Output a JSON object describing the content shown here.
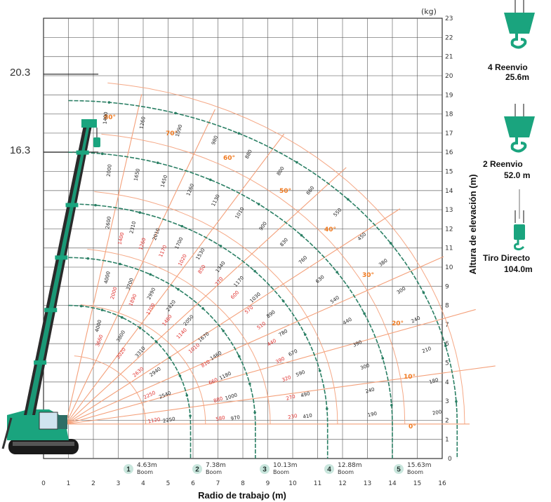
{
  "chart_data": {
    "type": "line",
    "title": "",
    "xlabel": "Radio de trabajo (m)",
    "ylabel": "Altura de elevación (m)",
    "y_unit": "(kg)",
    "xlim": [
      0,
      16
    ],
    "ylim": [
      0,
      23
    ],
    "x_ticks": [
      "0",
      "1",
      "2",
      "3",
      "4",
      "5",
      "6",
      "7",
      "8",
      "9",
      "10",
      "11",
      "12",
      "13",
      "14",
      "15",
      "16"
    ],
    "y_ticks": [
      "0",
      "1",
      "2",
      "3",
      "4",
      "5",
      "6",
      "7",
      "8",
      "9",
      "10",
      "11",
      "12",
      "13",
      "14",
      "15",
      "16",
      "17",
      "18",
      "19",
      "20",
      "21",
      "22",
      "23"
    ],
    "grid": true,
    "left_heights": [
      "20.3",
      "16.3"
    ],
    "boom_curves": [
      {
        "id": "1",
        "length": "4.63m",
        "word": "Boom",
        "radius": 5.9,
        "tip_y": 8.0
      },
      {
        "id": "2",
        "length": "7.38m",
        "word": "Boom",
        "radius": 8.5,
        "tip_y": 10.5
      },
      {
        "id": "3",
        "length": "10.13m",
        "word": "Boom",
        "radius": 11.4,
        "tip_y": 13.3
      },
      {
        "id": "4",
        "length": "12.88m",
        "word": "Boom",
        "radius": 14.0,
        "tip_y": 16.0
      },
      {
        "id": "5",
        "length": "15.63m",
        "word": "Boom",
        "radius": 16.6,
        "tip_y": 18.7
      }
    ],
    "angle_labels": [
      "80°",
      "70°",
      "60°",
      "50°",
      "40°",
      "30°",
      "20°",
      "10°",
      "0°"
    ],
    "loads": {
      "boom1": [
        "4000",
        "3800",
        "3310",
        "2940",
        "2540",
        "2250"
      ],
      "boom1_red": [
        "3660",
        "3020",
        "2630",
        "2250",
        "1120"
      ],
      "boom2": [
        "4000",
        "3700",
        "2990",
        "2420",
        "2050",
        "1670",
        "1460",
        "1180",
        "1000",
        "970"
      ],
      "boom2_red": [
        "2000",
        "1890",
        "1700",
        "1480",
        "1140",
        "1010",
        "810",
        "660",
        "880",
        "580"
      ],
      "boom3": [
        "2600",
        "2310",
        "2010",
        "1700",
        "1530",
        "1340",
        "1170",
        "1030",
        "890",
        "780",
        "670",
        "590",
        "490",
        "410"
      ],
      "boom3_red": [
        "1400",
        "1260",
        "1170",
        "1020",
        "850",
        "770",
        "600",
        "570",
        "510",
        "440",
        "390",
        "320",
        "270",
        "230"
      ],
      "boom4": [
        "2000",
        "1650",
        "1450",
        "1260",
        "1130",
        "1010",
        "900",
        "830",
        "760",
        "630",
        "540",
        "440",
        "390",
        "300",
        "240",
        "190"
      ],
      "boom5": [
        "1400",
        "1260",
        "1090",
        "980",
        "880",
        "800",
        "860",
        "550",
        "450",
        "380",
        "300",
        "240",
        "210",
        "180",
        "200"
      ]
    },
    "hooks": [
      {
        "label": "4  Reenvio",
        "value": "25.6m"
      },
      {
        "label": "2  Reenvio",
        "value": "52.0 m"
      },
      {
        "label": "Tiro Directo",
        "value": "104.0m"
      }
    ],
    "colors": {
      "crane_green": "#1aa47e",
      "load_line": "#2a7f64",
      "angle_line": "#f4a07a",
      "angle_text": "#f07a20",
      "grid": "#555555",
      "red_text": "#e0322f"
    }
  }
}
